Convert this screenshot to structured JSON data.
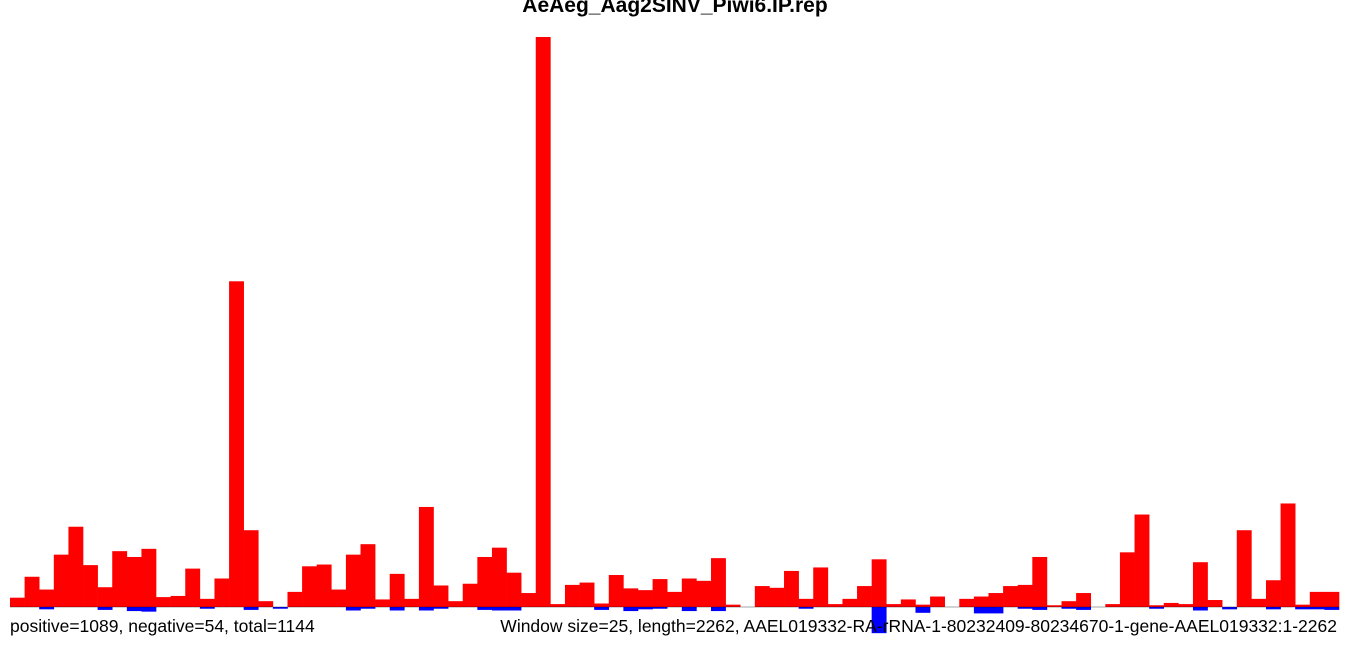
{
  "chart_data": {
    "type": "bar",
    "title": "AeAeg_Aag2SINV_Piwi6.IP.rep",
    "caption_left": "positive=1089, negative=54, total=1144",
    "caption_right": "Window size=25, length=2262, AAEL019332-RA-rRNA-1-80232409-80234670-1-gene-AAEL019332:1-2262",
    "xlabel": "",
    "ylabel": "",
    "window_size": 25,
    "length": 2262,
    "grid": false,
    "legend": "none",
    "colors": {
      "positive": "#ff0000",
      "negative": "#0000ff",
      "baseline": "#000000"
    },
    "ylim": [
      -5,
      99
    ],
    "series": [
      {
        "key": "positive",
        "values": [
          1.6,
          5.2,
          3.0,
          9.0,
          13.8,
          7.2,
          3.4,
          9.6,
          8.6,
          10.0,
          1.7,
          1.9,
          6.6,
          1.4,
          4.9,
          56.0,
          13.2,
          1.0,
          0,
          2.6,
          7.0,
          7.3,
          3.0,
          9.0,
          10.8,
          1.3,
          5.7,
          1.4,
          17.2,
          3.7,
          1.0,
          4.0,
          8.6,
          10.2,
          5.9,
          2.4,
          98.0,
          0.5,
          3.8,
          4.2,
          0.6,
          5.5,
          3.2,
          2.9,
          4.8,
          2.6,
          4.9,
          4.5,
          8.4,
          0.4,
          0,
          3.6,
          3.3,
          6.2,
          1.4,
          6.8,
          0.5,
          1.4,
          3.6,
          8.2,
          0.5,
          1.3,
          0.4,
          1.8,
          0,
          1.4,
          1.8,
          2.4,
          3.6,
          3.8,
          8.6,
          0.3,
          1.0,
          2.4,
          0,
          0.5,
          9.4,
          15.9,
          0.3,
          0.7,
          0.5,
          7.7,
          1.2,
          0,
          13.2,
          1.4,
          4.6,
          17.8,
          0.4,
          2.6,
          2.6
        ]
      },
      {
        "key": "negative",
        "values": [
          0,
          0,
          0.4,
          0,
          0,
          0,
          0.5,
          0,
          0.7,
          0.8,
          0,
          0,
          0,
          0.3,
          0,
          0,
          0.5,
          0,
          0.3,
          0,
          0,
          0,
          0,
          0.6,
          0.3,
          0,
          0.6,
          0,
          0.6,
          0.3,
          0,
          0,
          0.5,
          0.6,
          0.6,
          0,
          0,
          0,
          0,
          0,
          0.5,
          0,
          0.7,
          0.4,
          0.3,
          0,
          0.7,
          0,
          0.7,
          0,
          0,
          0,
          0,
          0,
          0.3,
          0,
          0,
          0,
          0,
          4.5,
          0,
          0,
          1.0,
          0,
          0,
          0,
          1.1,
          1.1,
          0,
          0.3,
          0.5,
          0,
          0.3,
          0.5,
          0,
          0,
          0,
          0,
          0.3,
          0,
          0,
          0.6,
          0,
          0.4,
          0,
          0,
          0.4,
          0,
          0.4,
          0.4,
          0.5
        ]
      }
    ]
  }
}
